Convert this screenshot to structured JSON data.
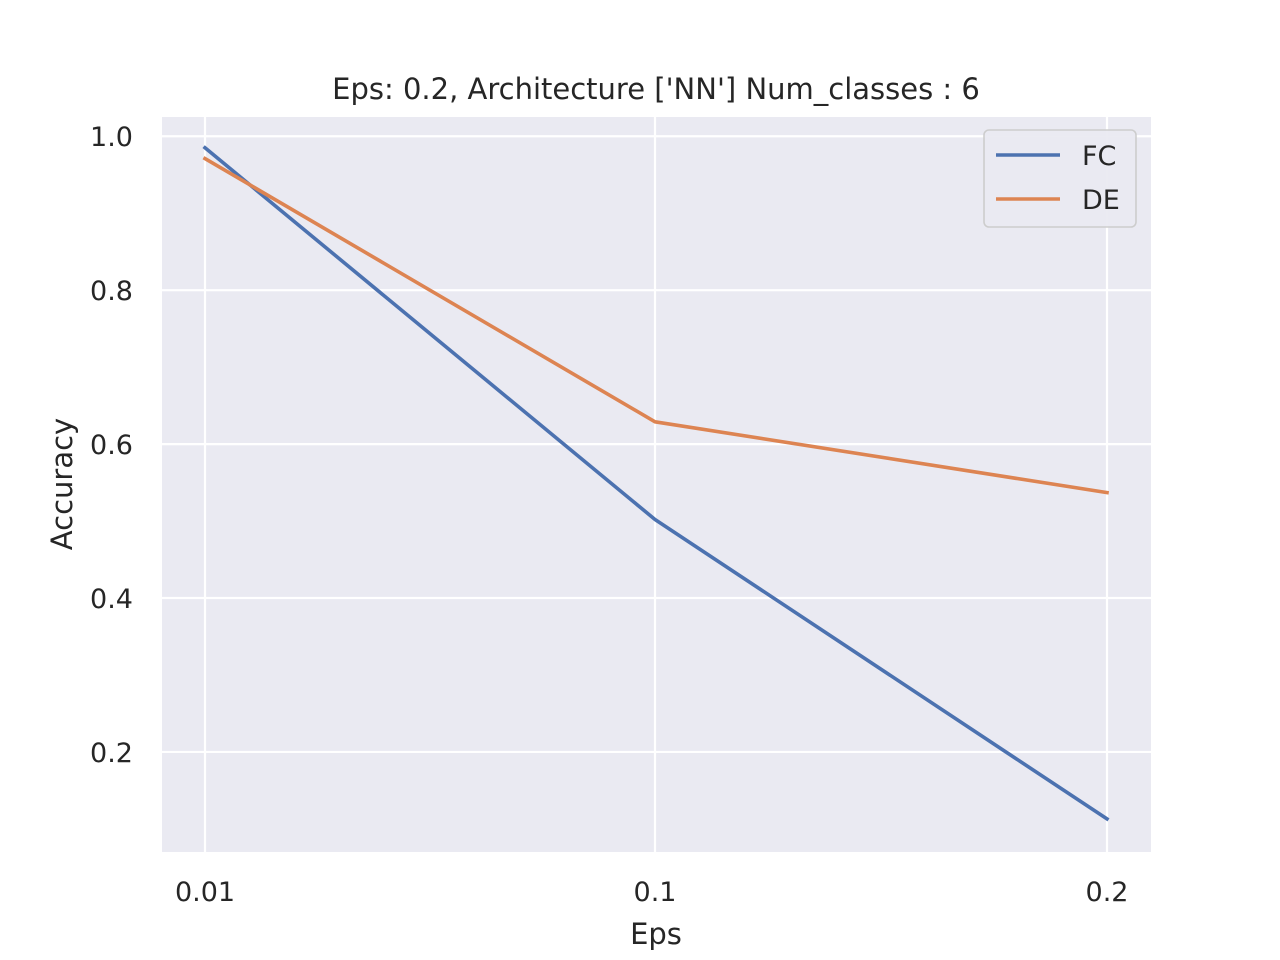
{
  "chart_data": {
    "type": "line",
    "title": "Eps: 0.2, Architecture ['NN'] Num_classes : 6",
    "xlabel": "Eps",
    "ylabel": "Accuracy",
    "categories": [
      "0.01",
      "0.1",
      "0.2"
    ],
    "ylim": [
      0.07,
      1.025
    ],
    "yticks": [
      "0.2",
      "0.4",
      "0.6",
      "0.8",
      "1.0"
    ],
    "ytick_values": [
      0.2,
      0.4,
      0.6,
      0.8,
      1.0
    ],
    "grid": true,
    "legend_position": "top-right",
    "series": [
      {
        "name": "FC",
        "color": "#4c72b0",
        "values": [
          0.985,
          0.502,
          0.113
        ]
      },
      {
        "name": "DE",
        "color": "#dd8452",
        "values": [
          0.971,
          0.629,
          0.537
        ]
      }
    ]
  }
}
